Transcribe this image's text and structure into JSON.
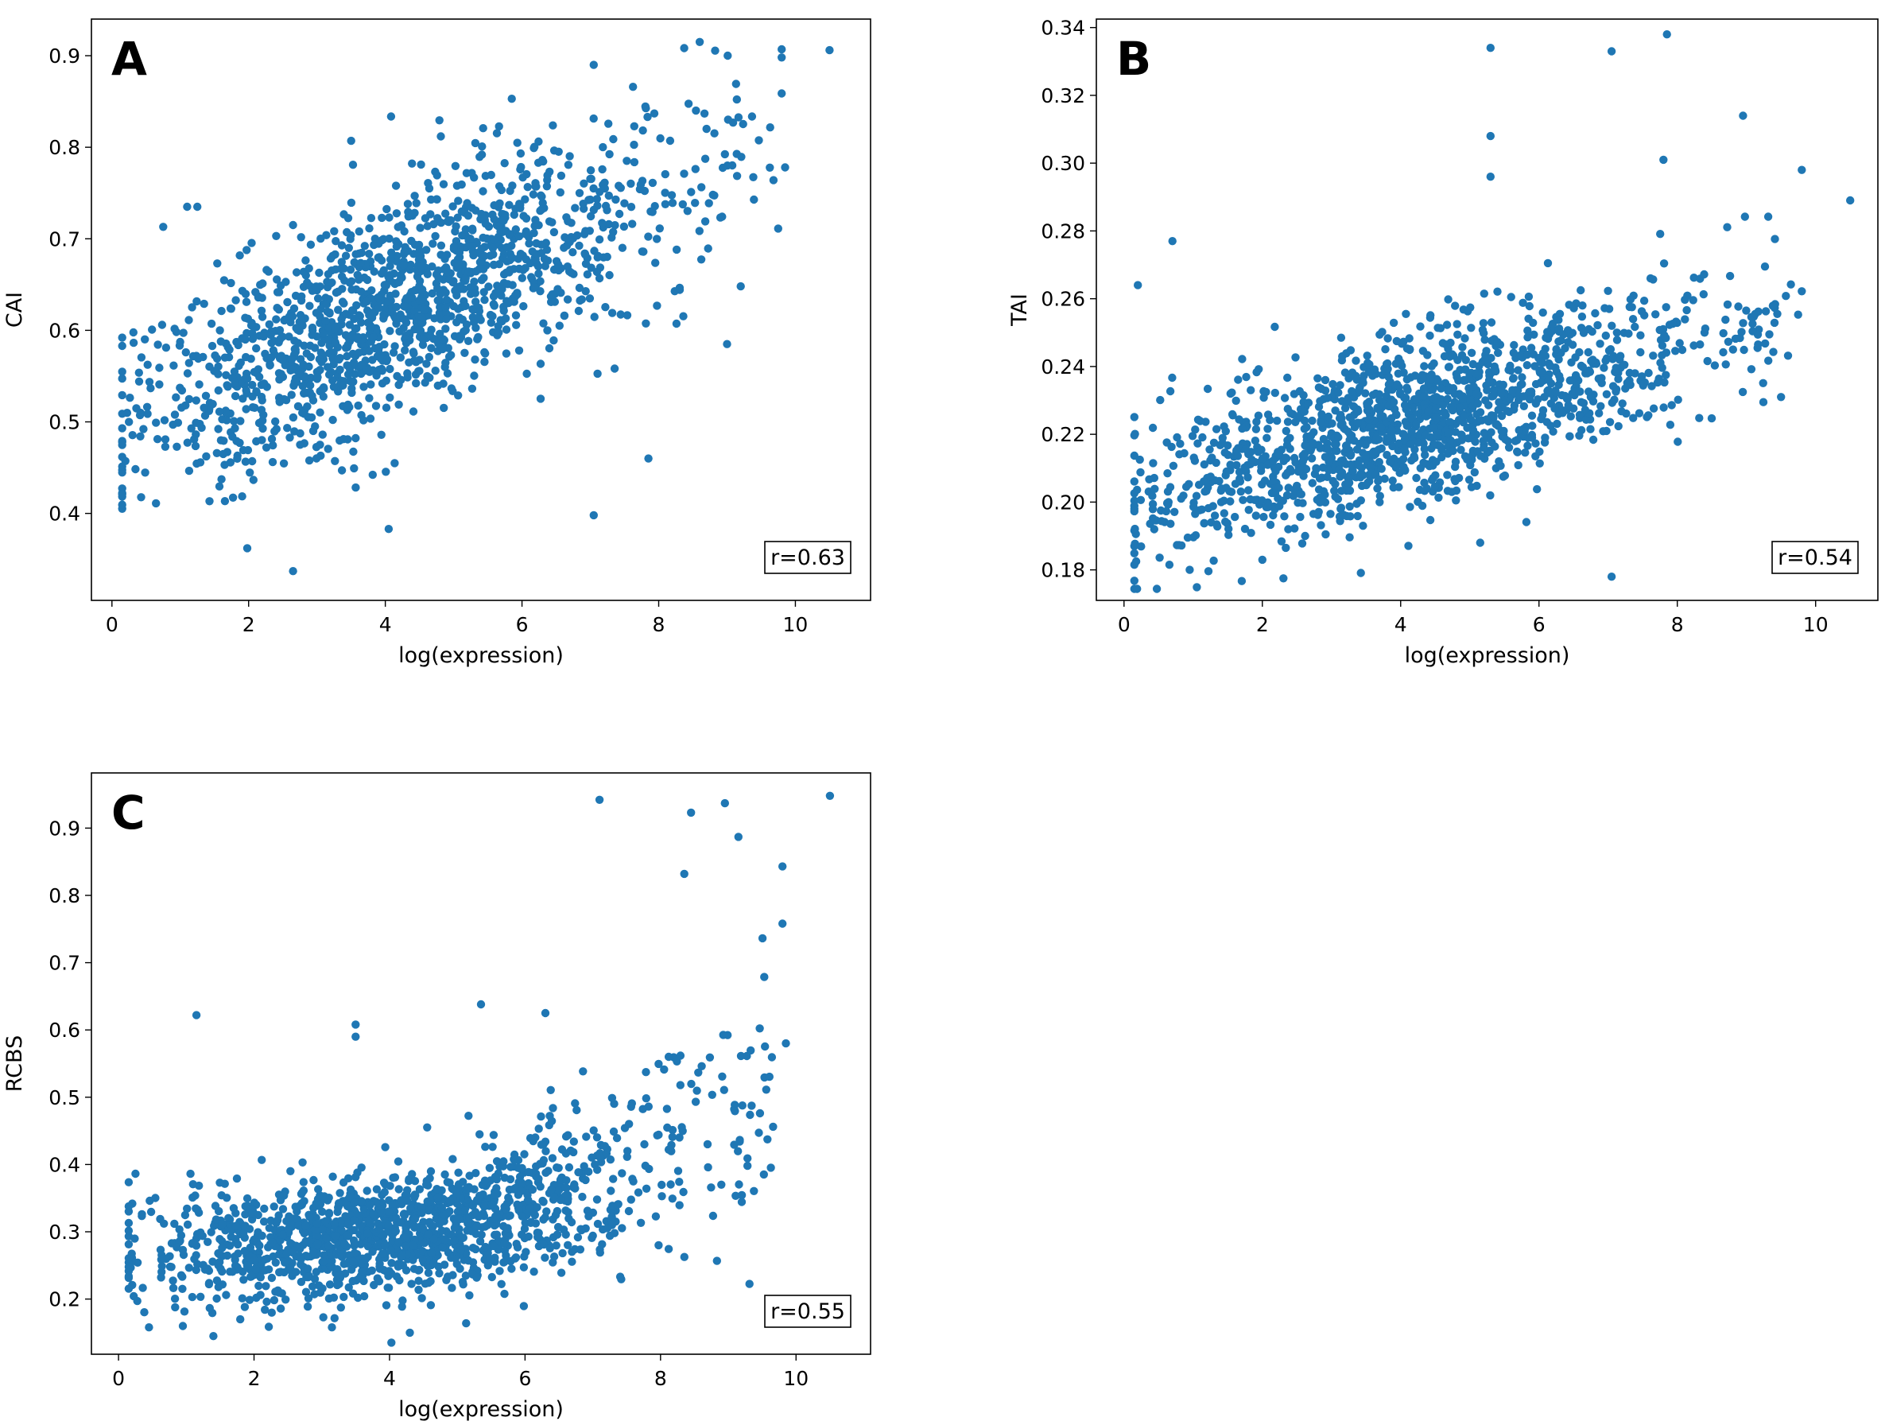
{
  "figure": {
    "marker_color": "#1f77b4"
  },
  "chart_data": [
    {
      "type": "scatter",
      "panel": "A",
      "title": "",
      "xlabel": "log(expression)",
      "ylabel": "CAI",
      "xlim": [
        -0.3,
        11.1
      ],
      "ylim": [
        0.305,
        0.94
      ],
      "xticks": [
        0,
        2,
        4,
        6,
        8,
        10
      ],
      "xtick_labels": [
        "0",
        "2",
        "4",
        "6",
        "8",
        "10"
      ],
      "yticks": [
        0.4,
        0.5,
        0.6,
        0.7,
        0.8,
        0.9
      ],
      "ytick_labels": [
        "0.4",
        "0.5",
        "0.6",
        "0.7",
        "0.8",
        "0.9"
      ],
      "annotation": "r=0.63",
      "grid": false,
      "gen": {
        "slope": 0.032,
        "intercept": 0.495,
        "noise": 0.058,
        "n": 1500,
        "seed": 11,
        "outliers": [
          [
            2.65,
            0.337
          ],
          [
            1.98,
            0.362
          ],
          [
            4.05,
            0.383
          ],
          [
            7.05,
            0.398
          ],
          [
            7.85,
            0.46
          ],
          [
            8.6,
            0.915
          ],
          [
            10.5,
            0.906
          ],
          [
            9.8,
            0.907
          ],
          [
            9.8,
            0.898
          ],
          [
            7.05,
            0.89
          ],
          [
            5.85,
            0.853
          ],
          [
            3.5,
            0.807
          ],
          [
            9.85,
            0.778
          ],
          [
            9.0,
            0.585
          ],
          [
            9.2,
            0.648
          ],
          [
            1.1,
            0.735
          ],
          [
            1.25,
            0.735
          ],
          [
            0.75,
            0.713
          ],
          [
            2.65,
            0.715
          ]
        ]
      },
      "points": []
    },
    {
      "type": "scatter",
      "panel": "B",
      "title": "",
      "xlabel": "log(expression)",
      "ylabel": "TAI",
      "xlim": [
        -0.4,
        10.9
      ],
      "ylim": [
        0.171,
        0.3425
      ],
      "xticks": [
        0,
        2,
        4,
        6,
        8,
        10
      ],
      "xtick_labels": [
        "0",
        "2",
        "4",
        "6",
        "8",
        "10"
      ],
      "yticks": [
        0.18,
        0.2,
        0.22,
        0.24,
        0.26,
        0.28,
        0.3,
        0.32,
        0.34
      ],
      "ytick_labels": [
        "0.18",
        "0.20",
        "0.22",
        "0.24",
        "0.26",
        "0.28",
        "0.30",
        "0.32",
        "0.34"
      ],
      "annotation": "r=0.54",
      "grid": false,
      "gen": {
        "slope": 0.0058,
        "intercept": 0.2,
        "noise": 0.0125,
        "n": 1500,
        "seed": 23,
        "outliers": [
          [
            5.3,
            0.334
          ],
          [
            7.05,
            0.333
          ],
          [
            7.85,
            0.338
          ],
          [
            8.95,
            0.314
          ],
          [
            5.3,
            0.308
          ],
          [
            5.3,
            0.296
          ],
          [
            9.8,
            0.298
          ],
          [
            10.5,
            0.289
          ],
          [
            0.2,
            0.264
          ],
          [
            0.7,
            0.277
          ],
          [
            0.95,
            0.18
          ],
          [
            7.05,
            0.178
          ],
          [
            2.0,
            0.183
          ],
          [
            5.15,
            0.188
          ],
          [
            9.5,
            0.231
          ],
          [
            7.8,
            0.301
          ]
        ]
      },
      "points": []
    },
    {
      "type": "scatter",
      "panel": "C",
      "title": "",
      "xlabel": "log(expression)",
      "ylabel": "RCBS",
      "xlim": [
        -0.4,
        11.1
      ],
      "ylim": [
        0.118,
        0.982
      ],
      "xticks": [
        0,
        2,
        4,
        6,
        8,
        10
      ],
      "xtick_labels": [
        "0",
        "2",
        "4",
        "6",
        "8",
        "10"
      ],
      "yticks": [
        0.2,
        0.3,
        0.4,
        0.5,
        0.6,
        0.7,
        0.8,
        0.9
      ],
      "ytick_labels": [
        "0.2",
        "0.3",
        "0.4",
        "0.5",
        "0.6",
        "0.7",
        "0.8",
        "0.9"
      ],
      "annotation": "r=0.55",
      "grid": false,
      "gen": {
        "curve": true,
        "noise": 0.045,
        "n": 1500,
        "seed": 37,
        "outliers": [
          [
            7.1,
            0.942
          ],
          [
            8.95,
            0.937
          ],
          [
            10.5,
            0.948
          ],
          [
            8.45,
            0.923
          ],
          [
            9.15,
            0.887
          ],
          [
            9.8,
            0.843
          ],
          [
            8.35,
            0.832
          ],
          [
            9.8,
            0.758
          ],
          [
            1.15,
            0.622
          ],
          [
            3.5,
            0.608
          ],
          [
            3.5,
            0.59
          ],
          [
            5.35,
            0.638
          ],
          [
            6.3,
            0.625
          ],
          [
            9.85,
            0.58
          ],
          [
            1.4,
            0.145
          ],
          [
            4.3,
            0.15
          ],
          [
            0.45,
            0.158
          ],
          [
            3.15,
            0.158
          ]
        ]
      },
      "points": []
    }
  ]
}
